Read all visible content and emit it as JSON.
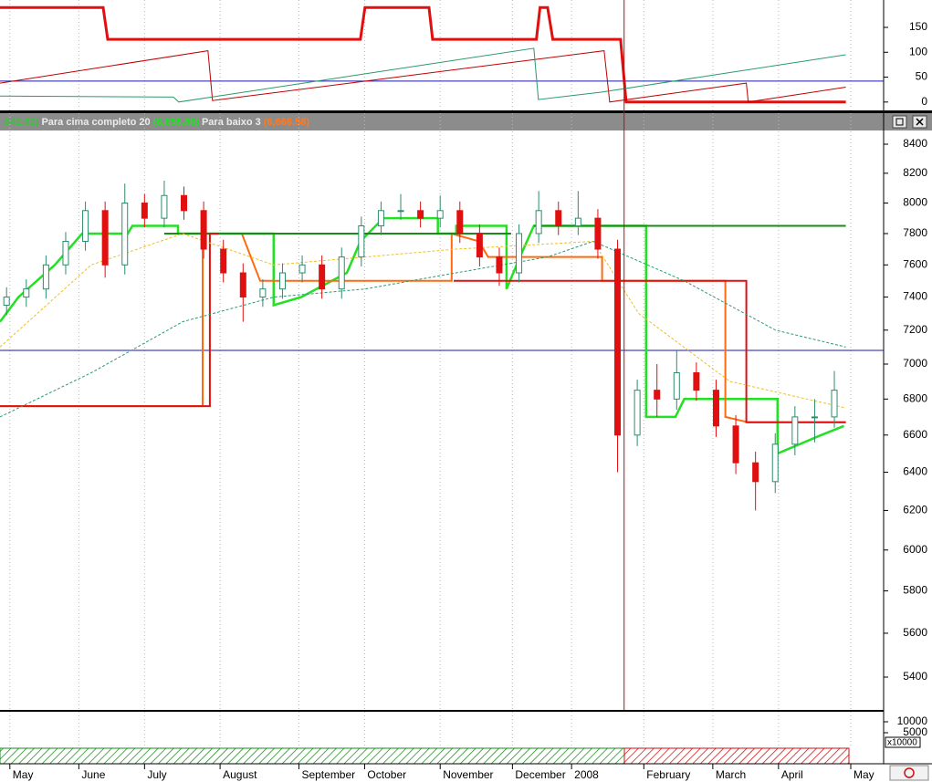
{
  "chart_data": [
    {
      "type": "line",
      "xlim": [
        0,
        269
      ],
      "ylim": [
        -15,
        205
      ],
      "yticks": [
        0,
        50,
        100,
        150
      ],
      "hline": 42,
      "hline_color": "#1a1aaa",
      "series": [
        {
          "color": "#e01010",
          "width": 3,
          "x": [
            0,
            31.4,
            32.8,
            109.7,
            111.1,
            130.6,
            131.7,
            163.3,
            164.4,
            166.7,
            168.3,
            188.9,
            190.6,
            257.5
          ],
          "values": [
            190,
            190,
            126,
            126,
            190,
            190,
            126,
            126,
            190,
            190,
            126,
            126,
            0,
            0
          ]
        },
        {
          "color": "#c00000",
          "width": 1,
          "x": [
            0,
            63.3,
            64.7,
            183.9,
            185.6,
            227.2,
            227.8,
            257.5
          ],
          "values": [
            38,
            103,
            3,
            103,
            0,
            38,
            0,
            30
          ]
        },
        {
          "color": "#2a9a6a",
          "width": 1,
          "x": [
            0,
            52.8,
            54.4,
            162.5,
            163.9,
            183.3,
            257.5
          ],
          "values": [
            12,
            10,
            0,
            108,
            5,
            20,
            95
          ]
        }
      ]
    },
    {
      "type": "candlestick",
      "log_scale": true,
      "xlim": [
        0,
        269
      ],
      "ylim": [
        5255,
        8496
      ],
      "yticks": [
        8400,
        8200,
        8000,
        7800,
        7600,
        7400,
        7200,
        7000,
        6800,
        6600,
        6400,
        6200,
        6000,
        5800,
        5600,
        5400
      ],
      "xticks": [
        {
          "value": 3,
          "label": "May"
        },
        {
          "value": 24,
          "label": "June"
        },
        {
          "value": 44,
          "label": "July"
        },
        {
          "value": 67,
          "label": "August"
        },
        {
          "value": 91,
          "label": "September"
        },
        {
          "value": 111,
          "label": "October"
        },
        {
          "value": 134,
          "label": "November"
        },
        {
          "value": 156,
          "label": "December"
        },
        {
          "value": 174,
          "label": "2008"
        },
        {
          "value": 196,
          "label": "February"
        },
        {
          "value": 217,
          "label": "March"
        },
        {
          "value": 237,
          "label": "April"
        },
        {
          "value": 259,
          "label": "May"
        }
      ],
      "legend_prefix": ",842.62)",
      "legend_prefix_color": "#3cc03c",
      "up_color": "#2e8b6e",
      "down_color": "#e01010",
      "hline": 7080,
      "hline_color": "#1a1aaa",
      "vline": 190,
      "vline_color": "#b01010",
      "x": [
        2,
        8,
        14,
        20,
        26,
        32,
        38,
        44,
        50,
        56,
        62,
        68,
        74,
        80,
        86,
        92,
        98,
        104,
        110,
        116,
        122,
        128,
        134,
        140,
        146,
        152,
        158,
        164,
        170,
        176,
        182,
        188,
        194,
        200,
        206,
        212,
        218,
        224,
        230,
        236,
        242,
        248,
        254
      ],
      "open": [
        7350,
        7400,
        7450,
        7600,
        7750,
        7950,
        7600,
        8000,
        7900,
        8050,
        7950,
        7700,
        7550,
        7400,
        7450,
        7550,
        7600,
        7450,
        7650,
        7850,
        7950,
        7950,
        7900,
        7950,
        7800,
        7650,
        7550,
        7800,
        7950,
        7850,
        7900,
        7700,
        6600,
        6850,
        6800,
        6950,
        6850,
        6650,
        6450,
        6350,
        6550,
        6700,
        6700
      ],
      "high": [
        7460,
        7510,
        7660,
        7810,
        8010,
        8010,
        8130,
        8060,
        8150,
        8110,
        8010,
        7760,
        7610,
        7510,
        7610,
        7660,
        7660,
        7710,
        7910,
        8010,
        8060,
        8010,
        8050,
        8010,
        7860,
        7710,
        7860,
        8080,
        8010,
        8080,
        7960,
        7760,
        6910,
        7000,
        7080,
        7010,
        6910,
        6710,
        6510,
        6610,
        6760,
        6800,
        6960
      ],
      "low": [
        7290,
        7340,
        7390,
        7540,
        7690,
        7520,
        7540,
        7840,
        7840,
        7890,
        7640,
        7490,
        7250,
        7340,
        7390,
        7490,
        7390,
        7390,
        7590,
        7790,
        7890,
        7840,
        7840,
        7740,
        7590,
        7470,
        7490,
        7740,
        7790,
        7790,
        7640,
        6400,
        6540,
        6700,
        6740,
        6790,
        6590,
        6390,
        6200,
        6290,
        6490,
        6560,
        6640
      ],
      "close": [
        7400,
        7450,
        7600,
        7750,
        7950,
        7600,
        8000,
        7900,
        8050,
        7950,
        7700,
        7550,
        7400,
        7450,
        7550,
        7600,
        7450,
        7650,
        7850,
        7950,
        7950,
        7900,
        7950,
        7800,
        7650,
        7550,
        7800,
        7950,
        7850,
        7900,
        7700,
        6600,
        6850,
        6800,
        6950,
        6850,
        6650,
        6450,
        6350,
        6550,
        6700,
        6700,
        6850
      ],
      "overlays": [
        {
          "name": "Para cima completo 20",
          "last_value_label": "(6,656.86)",
          "label_color": "#22e022",
          "color": "#22e022",
          "width": 2.5,
          "x": [
            0,
            5.6,
            16.7,
            25,
            38.9,
            40.3,
            54.2,
            54.2,
            83.3,
            83.3,
            91.7,
            105.6,
            109.7,
            116.7,
            133.3,
            133.3,
            138.9,
            138.9,
            154.2,
            154.2,
            158.3,
            162.5,
            196.7,
            196.7,
            205.6,
            208.3,
            236.7,
            236.7,
            250,
            256.9
          ],
          "values": [
            7250,
            7400,
            7600,
            7800,
            7800,
            7850,
            7850,
            7800,
            7800,
            7350,
            7400,
            7550,
            7750,
            7900,
            7900,
            7800,
            7800,
            7850,
            7850,
            7450,
            7650,
            7850,
            7850,
            6700,
            6700,
            6800,
            6800,
            6500,
            6600,
            6650
          ]
        },
        {
          "name": "Para baixo 3",
          "last_value_label": "(6,666.58)",
          "label_color": "#ff7a20",
          "color": "#ff6a10",
          "width": 2,
          "x": [
            0,
            61.7,
            61.7,
            73.6,
            79.2,
            137.5,
            137.5,
            145.8,
            148.6,
            183.3,
            183.3,
            220.8,
            220.8,
            227.8,
            257.5
          ],
          "values": [
            6760,
            6760,
            7800,
            7800,
            7500,
            7500,
            7800,
            7750,
            7650,
            7650,
            7500,
            7500,
            6700,
            6670,
            6670
          ]
        },
        {
          "color": "#1a8a1a",
          "width": 2,
          "x": [
            50,
            155.6,
            null,
            162.5,
            257.5
          ],
          "values": [
            7800,
            7800,
            null,
            7850,
            7850
          ]
        },
        {
          "color": "#e01010",
          "width": 2,
          "x": [
            0,
            63.9,
            63.9,
            66.7,
            null,
            138.1,
            227.2,
            227.2,
            257.5
          ],
          "values": [
            6760,
            6760,
            7800,
            7800,
            null,
            7500,
            7500,
            6670,
            6670
          ]
        },
        {
          "color": "#f0c020",
          "width": 1,
          "dash": true,
          "x": [
            0,
            27.8,
            55.6,
            83.3,
            138.9,
            180.6,
            194.4,
            222.2,
            257.5
          ],
          "values": [
            7100,
            7600,
            7800,
            7600,
            7700,
            7750,
            7300,
            6900,
            6750
          ]
        },
        {
          "color": "#2a9a7a",
          "width": 1,
          "dash": true,
          "x": [
            0,
            27.8,
            55.6,
            83.3,
            111.1,
            138.9,
            166.7,
            180.6,
            208.3,
            236.1,
            257.5
          ],
          "values": [
            6700,
            6950,
            7250,
            7400,
            7450,
            7550,
            7650,
            7750,
            7500,
            7200,
            7100
          ]
        }
      ]
    },
    {
      "type": "volume",
      "ylim": [
        -2083,
        14583
      ],
      "yticks": [
        10000,
        5000
      ],
      "unit_label": "x10000"
    }
  ]
}
